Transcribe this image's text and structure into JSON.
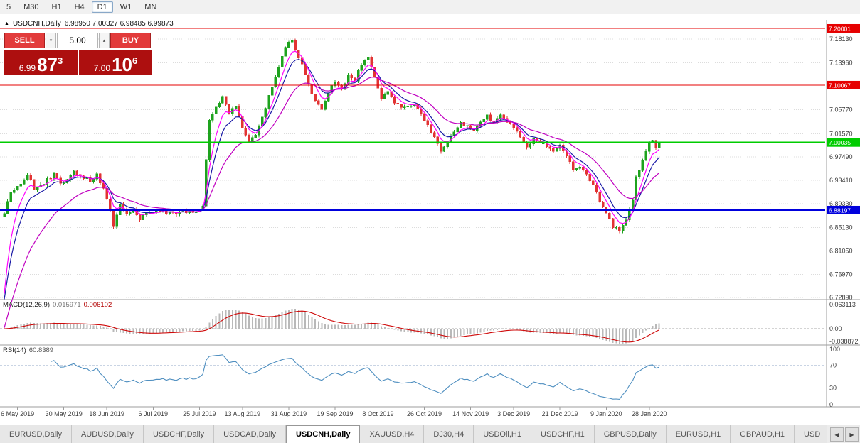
{
  "toolbar": {
    "periods": [
      "5",
      "M30",
      "H1",
      "H4",
      "D1",
      "W1",
      "MN"
    ],
    "active_period": "D1"
  },
  "chart_header": {
    "collapse_icon": "▲",
    "title": "USDCNH,Daily",
    "ohlc": "6.98950 7.00327 6.98485 6.99873"
  },
  "trade_panel": {
    "sell_label": "SELL",
    "buy_label": "BUY",
    "volume": "5.00",
    "spin_down_icon": "▾",
    "spin_up_icon": "▴",
    "bid": {
      "prefix": "6.99",
      "big": "87",
      "sup": "3"
    },
    "ask": {
      "prefix": "7.00",
      "big": "10",
      "sup": "6"
    }
  },
  "chart_data": {
    "type": "candlestick",
    "symbol": "USDCNH",
    "timeframe": "Daily",
    "open": "6.98950",
    "high": "7.00327",
    "low": "6.98485",
    "close": "6.99873",
    "y_range": [
      6.7254,
      7.2149
    ],
    "y_ticks": [
      7.1813,
      7.1396,
      7.0577,
      7.0157,
      6.9749,
      6.9341,
      6.8933,
      6.8513,
      6.8105,
      6.7697,
      6.7289
    ],
    "colors": {
      "up": "#1ea31e",
      "down": "#e23333",
      "grid": "#dcdcdc"
    },
    "hlines": [
      {
        "value": 7.20001,
        "label": "7.20001",
        "color": "#e60000",
        "width": 1.3
      },
      {
        "value": 7.10067,
        "label": "7.10067",
        "color": "#e60000",
        "width": 1.3
      },
      {
        "value": 7.00035,
        "label": "7.00035",
        "color": "#00cc00",
        "width": 2
      },
      {
        "value": 6.88197,
        "label": "6.88197",
        "color": "#0000dd",
        "width": 1.6
      }
    ],
    "x_labels": [
      {
        "i": 4,
        "label": "6 May 2019"
      },
      {
        "i": 18,
        "label": "30 May 2019"
      },
      {
        "i": 31,
        "label": "18 Jun 2019"
      },
      {
        "i": 45,
        "label": "6 Jul 2019"
      },
      {
        "i": 59,
        "label": "25 Jul 2019"
      },
      {
        "i": 72,
        "label": "13 Aug 2019"
      },
      {
        "i": 86,
        "label": "31 Aug 2019"
      },
      {
        "i": 100,
        "label": "19 Sep 2019"
      },
      {
        "i": 113,
        "label": "8 Oct 2019"
      },
      {
        "i": 127,
        "label": "26 Oct 2019"
      },
      {
        "i": 141,
        "label": "14 Nov 2019"
      },
      {
        "i": 154,
        "label": "3 Dec 2019"
      },
      {
        "i": 168,
        "label": "21 Dec 2019"
      },
      {
        "i": 182,
        "label": "9 Jan 2020"
      },
      {
        "i": 195,
        "label": "28 Jan 2020"
      }
    ],
    "candles": {
      "count": 199,
      "noise": 0.0032,
      "anchors": [
        [
          0,
          6.875
        ],
        [
          2,
          6.915
        ],
        [
          5,
          6.93
        ],
        [
          7,
          6.945
        ],
        [
          9,
          6.92
        ],
        [
          12,
          6.93
        ],
        [
          15,
          6.945
        ],
        [
          17,
          6.928
        ],
        [
          19,
          6.935
        ],
        [
          21,
          6.953
        ],
        [
          23,
          6.94
        ],
        [
          26,
          6.934
        ],
        [
          28,
          6.944
        ],
        [
          30,
          6.92
        ],
        [
          32,
          6.878
        ],
        [
          33,
          6.856
        ],
        [
          35,
          6.89
        ],
        [
          37,
          6.874
        ],
        [
          39,
          6.884
        ],
        [
          41,
          6.868
        ],
        [
          44,
          6.878
        ],
        [
          48,
          6.88
        ],
        [
          52,
          6.877
        ],
        [
          56,
          6.88
        ],
        [
          59,
          6.882
        ],
        [
          60,
          6.89
        ],
        [
          61,
          6.97
        ],
        [
          62,
          7.04
        ],
        [
          64,
          7.06
        ],
        [
          66,
          7.078
        ],
        [
          68,
          7.052
        ],
        [
          70,
          7.065
        ],
        [
          72,
          7.028
        ],
        [
          74,
          7.0
        ],
        [
          76,
          7.015
        ],
        [
          78,
          7.045
        ],
        [
          80,
          7.08
        ],
        [
          82,
          7.118
        ],
        [
          84,
          7.152
        ],
        [
          85,
          7.168
        ],
        [
          87,
          7.178
        ],
        [
          88,
          7.162
        ],
        [
          90,
          7.14
        ],
        [
          92,
          7.1
        ],
        [
          94,
          7.072
        ],
        [
          96,
          7.058
        ],
        [
          98,
          7.088
        ],
        [
          100,
          7.108
        ],
        [
          102,
          7.092
        ],
        [
          104,
          7.118
        ],
        [
          106,
          7.108
        ],
        [
          108,
          7.138
        ],
        [
          110,
          7.148
        ],
        [
          112,
          7.112
        ],
        [
          114,
          7.078
        ],
        [
          116,
          7.092
        ],
        [
          118,
          7.068
        ],
        [
          121,
          7.062
        ],
        [
          124,
          7.07
        ],
        [
          126,
          7.048
        ],
        [
          128,
          7.032
        ],
        [
          130,
          7.008
        ],
        [
          132,
          6.986
        ],
        [
          134,
          7.0
        ],
        [
          136,
          7.018
        ],
        [
          138,
          7.034
        ],
        [
          140,
          7.028
        ],
        [
          142,
          7.018
        ],
        [
          144,
          7.036
        ],
        [
          146,
          7.046
        ],
        [
          148,
          7.032
        ],
        [
          150,
          7.052
        ],
        [
          152,
          7.038
        ],
        [
          154,
          7.028
        ],
        [
          156,
          7.008
        ],
        [
          158,
          6.994
        ],
        [
          160,
          7.004
        ],
        [
          162,
          6.999
        ],
        [
          164,
          6.996
        ],
        [
          166,
          6.984
        ],
        [
          168,
          6.994
        ],
        [
          170,
          6.974
        ],
        [
          172,
          6.954
        ],
        [
          174,
          6.958
        ],
        [
          176,
          6.944
        ],
        [
          178,
          6.928
        ],
        [
          180,
          6.898
        ],
        [
          182,
          6.878
        ],
        [
          184,
          6.854
        ],
        [
          186,
          6.844
        ],
        [
          188,
          6.864
        ],
        [
          190,
          6.9
        ],
        [
          191,
          6.938
        ],
        [
          192,
          6.954
        ],
        [
          193,
          6.968
        ],
        [
          194,
          6.984
        ],
        [
          195,
          6.998
        ],
        [
          196,
          7.004
        ],
        [
          197,
          6.988
        ],
        [
          198,
          6.99873
        ]
      ]
    },
    "mas": [
      {
        "period": 8,
        "color": "#1a1aa6",
        "start_offset": -0.15
      },
      {
        "period": 5,
        "color": "#ff00ff",
        "start_offset": -0.14
      },
      {
        "period": 20,
        "color": "#c000c0",
        "start_offset": -0.2
      }
    ],
    "macd": {
      "name": "MACD(12,26,9)",
      "value_main": "0.015971",
      "value_signal": "0.006102",
      "fast": 12,
      "slow": 26,
      "signal_period": 9,
      "axis_labels": [
        "0.063113",
        "0.00",
        "-0.038872"
      ],
      "hist_color": "#b9b9b9",
      "line_color": "#cf0a0a"
    },
    "rsi": {
      "name": "RSI(14)",
      "value": "60.8389",
      "period": 14,
      "levels": [
        70,
        30
      ],
      "axis_labels": [
        "100",
        "70",
        "30",
        "0"
      ],
      "color": "#4f8fc0"
    }
  },
  "tabs": {
    "items": [
      "EURUSD,Daily",
      "AUDUSD,Daily",
      "USDCHF,Daily",
      "USDCAD,Daily",
      "USDCNH,Daily",
      "XAUUSD,H4",
      "DJ30,H4",
      "USDOil,H1",
      "USDCHF,H1",
      "GBPUSD,Daily",
      "EURUSD,H1",
      "GBPAUD,H1",
      "USD"
    ],
    "active": "USDCNH,Daily",
    "scroll_left_icon": "◀",
    "scroll_right_icon": "▶"
  }
}
